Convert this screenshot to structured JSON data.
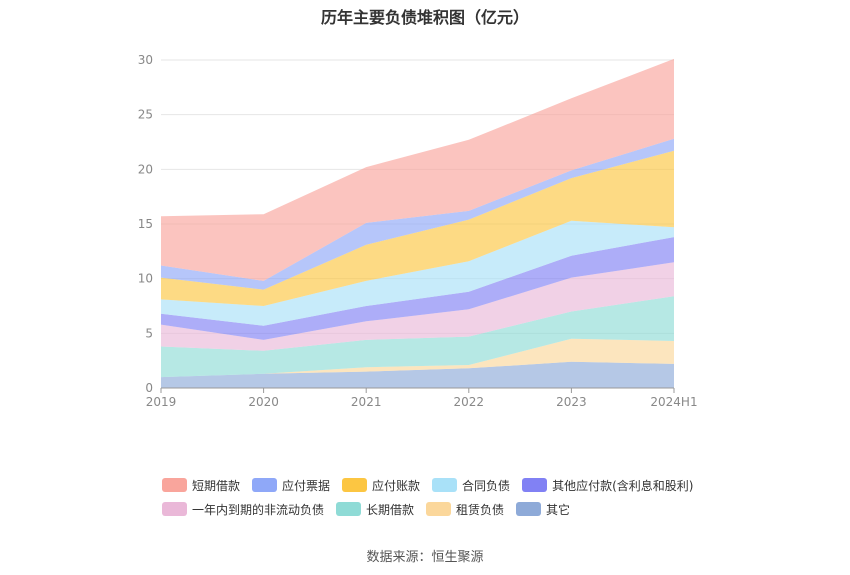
{
  "title": "历年主要负债堆积图（亿元）",
  "source": "数据来源：恒生聚源",
  "chart_data": {
    "type": "area",
    "stacked": true,
    "x": [
      "2019",
      "2020",
      "2021",
      "2022",
      "2023",
      "2024H1"
    ],
    "ylim": [
      0,
      30
    ],
    "yticks": [
      0,
      5,
      10,
      15,
      20,
      25,
      30
    ],
    "grid": true,
    "legend_position": "bottom",
    "series": [
      {
        "name": "其他",
        "color": "#8eaad8",
        "values": [
          1.0,
          1.3,
          1.5,
          1.8,
          2.4,
          2.2
        ]
      },
      {
        "name": "租赁负债",
        "color": "#fbd79b",
        "values": [
          0.0,
          0.0,
          0.4,
          0.3,
          2.1,
          2.1
        ]
      },
      {
        "name": "长期借款",
        "color": "#8fdbd6",
        "values": [
          2.8,
          2.1,
          2.5,
          2.6,
          2.5,
          4.1
        ]
      },
      {
        "name": "一年内到期的非流动负债",
        "color": "#eab8d8",
        "values": [
          2.0,
          1.0,
          1.7,
          2.5,
          3.1,
          3.1
        ]
      },
      {
        "name": "其他应付款(含利息和股利)",
        "color": "#8181f4",
        "values": [
          1.0,
          1.3,
          1.4,
          1.6,
          2.0,
          2.3
        ]
      },
      {
        "name": "合同负债",
        "color": "#a9e1f8",
        "values": [
          1.3,
          1.8,
          2.3,
          2.8,
          3.2,
          0.9
        ]
      },
      {
        "name": "应付账款",
        "color": "#fcc642",
        "values": [
          2.0,
          1.5,
          3.3,
          3.8,
          3.9,
          7.0
        ]
      },
      {
        "name": "应付票据",
        "color": "#8fa8f8",
        "values": [
          1.1,
          0.8,
          2.0,
          0.8,
          0.7,
          1.1
        ]
      },
      {
        "name": "短期借款",
        "color": "#f9a59c",
        "values": [
          4.5,
          6.1,
          5.1,
          6.5,
          6.6,
          7.3
        ]
      }
    ]
  },
  "legend": {
    "rows": [
      [
        {
          "label": "短期借款",
          "color": "#f9a59c"
        },
        {
          "label": "应付票据",
          "color": "#8fa8f8"
        },
        {
          "label": "应付账款",
          "color": "#fcc642"
        },
        {
          "label": "合同负债",
          "color": "#a9e1f8"
        },
        {
          "label": "其他应付款(含利息和股利)",
          "color": "#8181f4"
        }
      ],
      [
        {
          "label": "一年内到期的非流动负债",
          "color": "#eab8d8"
        },
        {
          "label": "长期借款",
          "color": "#8fdbd6"
        },
        {
          "label": "租赁负债",
          "color": "#fbd79b"
        },
        {
          "label": "其它",
          "color": "#8eaad8"
        }
      ]
    ]
  }
}
